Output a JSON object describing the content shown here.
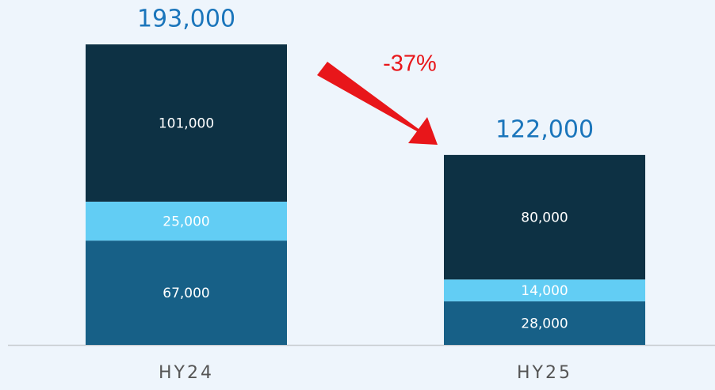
{
  "chart_data": {
    "type": "stacked_bar",
    "categories": [
      "HY24",
      "HY25"
    ],
    "series": [
      {
        "color": "#176087",
        "values": [
          67000,
          28000
        ],
        "value_labels": [
          "67,000",
          "28,000"
        ]
      },
      {
        "color": "#62cdf4",
        "values": [
          25000,
          14000
        ],
        "value_labels": [
          "25,000",
          "14,000"
        ]
      },
      {
        "color": "#0d3144",
        "values": [
          101000,
          80000
        ],
        "value_labels": [
          "101,000",
          "80,000"
        ]
      }
    ],
    "totals": [
      193000,
      122000
    ],
    "total_labels": [
      "193,000",
      "122,000"
    ],
    "annotation": "-37%",
    "ylim": [
      0,
      220000
    ]
  }
}
